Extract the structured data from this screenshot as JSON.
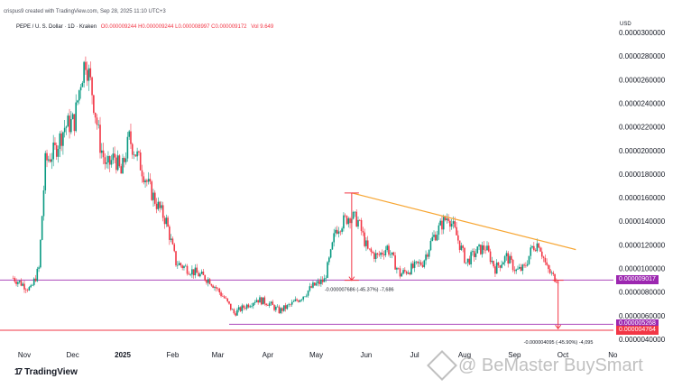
{
  "header": {
    "meta": "crispus9 created with TradingView.com, Sep 28, 2025 11:10 UTC+3",
    "symbol": "PEPE / U. S. Dollar · 1D · Kraken",
    "ohlc": "O0.000009244 H0.000009244 L0.000008997 C0.000009172",
    "vol": "Vol 9.649",
    "currency": "USD"
  },
  "badges": {
    "current": "0.000009017",
    "level_a": "0.000005268",
    "level_b": "0.000004764"
  },
  "measurements": {
    "left": "-0.000007686 (-45.37%) -7,686",
    "right": "-0.000004095 (-45.90%) -4,095"
  },
  "footer": {
    "logo_text": "TradingView",
    "watermark": "@ BeMaster BuySmart"
  },
  "chart_data": {
    "type": "candlestick",
    "pair": "PEPE / U. S. Dollar",
    "interval": "1D",
    "exchange": "Kraken",
    "x_labels": [
      "Nov",
      "Dec",
      "2025",
      "Feb",
      "Mar",
      "Apr",
      "May",
      "Jun",
      "Jul",
      "Aug",
      "Sep",
      "Oct",
      "No"
    ],
    "y_ticks": [
      "0.0000300000",
      "0.0000280000",
      "0.0000260000",
      "0.0000240000",
      "0.0000220000",
      "0.0000200000",
      "0.0000180000",
      "0.0000160000",
      "0.0000140000",
      "0.0000120000",
      "0.0000100000",
      "0.0000080000",
      "0.0000060000",
      "0.0000040000"
    ],
    "ylim": [
      3.7e-06,
      3.05e-05
    ],
    "approx_close_path": [
      {
        "t": "2024-10-25",
        "v": 9.2e-06
      },
      {
        "t": "2024-11-05",
        "v": 8.2e-06
      },
      {
        "t": "2024-11-10",
        "v": 1e-05
      },
      {
        "t": "2024-11-14",
        "v": 1.9e-05
      },
      {
        "t": "2024-11-20",
        "v": 2e-05
      },
      {
        "t": "2024-11-26",
        "v": 2.2e-05
      },
      {
        "t": "2024-12-02",
        "v": 2.25e-05
      },
      {
        "t": "2024-12-06",
        "v": 2.6e-05
      },
      {
        "t": "2024-12-09",
        "v": 2.78e-05
      },
      {
        "t": "2024-12-13",
        "v": 2.5e-05
      },
      {
        "t": "2024-12-18",
        "v": 2.05e-05
      },
      {
        "t": "2024-12-22",
        "v": 1.85e-05
      },
      {
        "t": "2024-12-27",
        "v": 1.95e-05
      },
      {
        "t": "2024-12-31",
        "v": 1.8e-05
      },
      {
        "t": "2025-01-05",
        "v": 2.1e-05
      },
      {
        "t": "2025-01-10",
        "v": 1.95e-05
      },
      {
        "t": "2025-01-17",
        "v": 1.7e-05
      },
      {
        "t": "2025-01-22",
        "v": 1.55e-05
      },
      {
        "t": "2025-01-28",
        "v": 1.4e-05
      },
      {
        "t": "2025-02-03",
        "v": 1.05e-05
      },
      {
        "t": "2025-02-10",
        "v": 1e-05
      },
      {
        "t": "2025-02-17",
        "v": 9.5e-06
      },
      {
        "t": "2025-02-24",
        "v": 9e-06
      },
      {
        "t": "2025-03-05",
        "v": 7.5e-06
      },
      {
        "t": "2025-03-11",
        "v": 6.2e-06
      },
      {
        "t": "2025-03-18",
        "v": 6.8e-06
      },
      {
        "t": "2025-03-25",
        "v": 7.4e-06
      },
      {
        "t": "2025-04-01",
        "v": 7.1e-06
      },
      {
        "t": "2025-04-08",
        "v": 6.4e-06
      },
      {
        "t": "2025-04-15",
        "v": 6.9e-06
      },
      {
        "t": "2025-04-22",
        "v": 7.6e-06
      },
      {
        "t": "2025-04-29",
        "v": 8.5e-06
      },
      {
        "t": "2025-05-06",
        "v": 9e-06
      },
      {
        "t": "2025-05-10",
        "v": 1.12e-05
      },
      {
        "t": "2025-05-13",
        "v": 1.33e-05
      },
      {
        "t": "2025-05-18",
        "v": 1.4e-05
      },
      {
        "t": "2025-05-22",
        "v": 1.45e-05
      },
      {
        "t": "2025-05-27",
        "v": 1.4e-05
      },
      {
        "t": "2025-06-02",
        "v": 1.15e-05
      },
      {
        "t": "2025-06-08",
        "v": 1.1e-05
      },
      {
        "t": "2025-06-14",
        "v": 1.18e-05
      },
      {
        "t": "2025-06-22",
        "v": 9.5e-06
      },
      {
        "t": "2025-06-29",
        "v": 1e-05
      },
      {
        "t": "2025-07-06",
        "v": 1.05e-05
      },
      {
        "t": "2025-07-12",
        "v": 1.25e-05
      },
      {
        "t": "2025-07-18",
        "v": 1.38e-05
      },
      {
        "t": "2025-07-22",
        "v": 1.45e-05
      },
      {
        "t": "2025-07-27",
        "v": 1.28e-05
      },
      {
        "t": "2025-08-02",
        "v": 1.05e-05
      },
      {
        "t": "2025-08-09",
        "v": 1.15e-05
      },
      {
        "t": "2025-08-14",
        "v": 1.18e-05
      },
      {
        "t": "2025-08-20",
        "v": 1e-05
      },
      {
        "t": "2025-08-27",
        "v": 1.1e-05
      },
      {
        "t": "2025-09-02",
        "v": 9.8e-06
      },
      {
        "t": "2025-09-07",
        "v": 1e-05
      },
      {
        "t": "2025-09-12",
        "v": 1.18e-05
      },
      {
        "t": "2025-09-16",
        "v": 1.22e-05
      },
      {
        "t": "2025-09-21",
        "v": 1e-05
      },
      {
        "t": "2025-09-25",
        "v": 9.3e-06
      },
      {
        "t": "2025-09-28",
        "v": 9.1e-06
      }
    ],
    "trendline": {
      "from": {
        "t": "2025-05-23",
        "v": 1.64e-05
      },
      "to": {
        "t": "2025-10-09",
        "v": 1.16e-05
      },
      "color": "#f7a531"
    },
    "horizontal_levels": [
      {
        "v": 9.017e-06,
        "color": "#ab47bc"
      },
      {
        "v": 5.268e-06,
        "color": "#ab47bc"
      },
      {
        "v": 4.764e-06,
        "color": "#f23645"
      }
    ],
    "measures": [
      {
        "from": {
          "t": "2025-05-23",
          "v": 1.64e-05
        },
        "to": {
          "t": "2025-05-23",
          "v": 9e-06
        },
        "text_key": "left"
      },
      {
        "from": {
          "t": "2025-09-28",
          "v": 9e-06
        },
        "to": {
          "t": "2025-09-28",
          "v": 4.9e-06
        },
        "text_key": "right"
      }
    ],
    "colors": {
      "up": "#089981",
      "down": "#f23645",
      "trend": "#f7a531",
      "level": "#ab47bc",
      "level_red": "#f23645"
    }
  }
}
